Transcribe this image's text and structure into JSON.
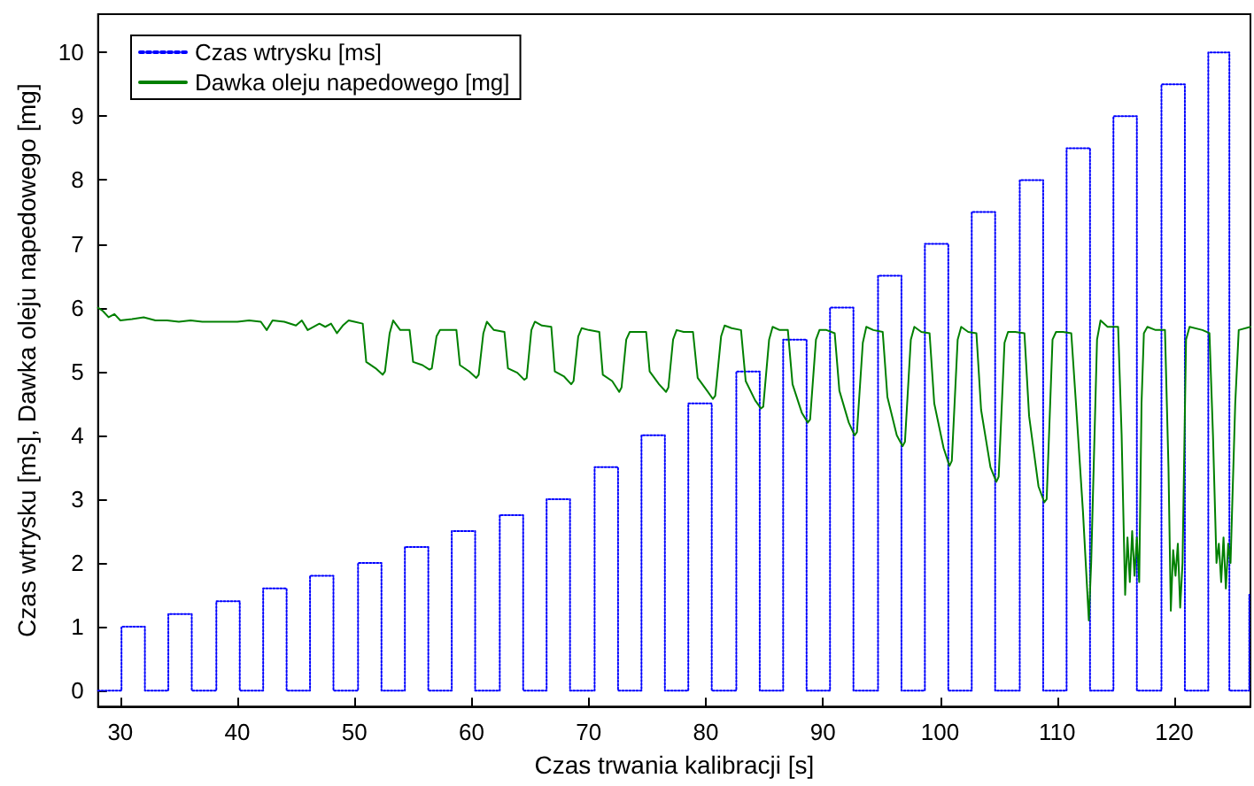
{
  "chart_data": {
    "type": "line",
    "xlabel": "Czas trwania kalibracji [s]",
    "ylabel": "Czas wtrysku [ms], Dawka oleju napedowego [mg]",
    "xlim": [
      28.1,
      126.5
    ],
    "xticks": [
      30,
      40,
      50,
      60,
      70,
      80,
      90,
      100,
      110,
      120
    ],
    "ylim": [
      -0.25,
      10.6
    ],
    "yticks": [
      0,
      1,
      2,
      3,
      4,
      5,
      6,
      7,
      8,
      9,
      10
    ],
    "grid": false,
    "legend": "top left",
    "marker": "none",
    "series": [
      {
        "name": "Czas wtrysku [ms]",
        "type": "step",
        "color": "#0000ff",
        "line_style": "dotted",
        "x": [
          28.1,
          30.1,
          32.1,
          34.1,
          36.1,
          38.2,
          40.2,
          42.2,
          44.2,
          46.2,
          48.2,
          50.3,
          52.3,
          54.3,
          56.3,
          58.3,
          60.3,
          62.4,
          64.4,
          66.4,
          68.4,
          70.5,
          72.5,
          74.5,
          76.5,
          78.5,
          80.5,
          82.6,
          84.6,
          86.6,
          88.6,
          90.6,
          92.6,
          94.7,
          96.7,
          98.7,
          100.7,
          102.7,
          104.7,
          106.8,
          108.8,
          110.8,
          112.8,
          114.8,
          116.8,
          118.9,
          120.9,
          122.9,
          124.7,
          126.4,
          126.5
        ],
        "values": [
          0,
          1,
          0,
          1.2,
          0,
          1.4,
          0,
          1.6,
          0,
          1.8,
          0,
          2,
          0,
          2.25,
          0,
          2.5,
          0,
          2.75,
          0,
          3,
          0,
          3.5,
          0,
          4,
          0,
          4.5,
          0,
          5,
          0,
          5.5,
          0,
          6,
          0,
          6.5,
          0,
          7,
          0,
          7.5,
          0,
          8,
          0,
          8.5,
          0,
          9,
          0,
          9.5,
          0,
          10,
          0,
          1.5,
          1.5
        ]
      },
      {
        "name": "Dawka oleju napedowego [mg]",
        "type": "line",
        "color": "#008000",
        "line_style": "solid",
        "x": [
          28.1,
          28.5,
          29,
          29.5,
          30,
          31,
          32,
          33,
          34,
          35,
          36,
          37,
          38,
          39,
          40,
          41,
          42,
          42.5,
          43,
          44,
          45,
          45.5,
          46,
          47,
          47.5,
          48,
          48.5,
          49,
          49.5,
          50,
          50.7,
          51.0,
          51.8,
          52.4,
          52.6,
          53.0,
          53.3,
          53.9,
          54.7,
          55.0,
          55.8,
          56.4,
          56.6,
          57.0,
          57.3,
          57.9,
          58.7,
          59.0,
          59.8,
          60.4,
          60.6,
          61.0,
          61.3,
          61.9,
          62.8,
          63.1,
          63.9,
          64.5,
          64.7,
          65.1,
          65.4,
          66.0,
          66.8,
          67.1,
          67.9,
          68.5,
          68.7,
          69.1,
          69.4,
          70.0,
          70.9,
          71.2,
          72.0,
          72.6,
          72.8,
          73.2,
          73.5,
          74.1,
          74.9,
          75.2,
          76.0,
          76.6,
          76.8,
          77.2,
          77.5,
          78.1,
          78.9,
          79.3,
          80.1,
          80.6,
          80.8,
          81.3,
          81.6,
          82.2,
          83.0,
          83.4,
          84.2,
          84.7,
          84.9,
          85.4,
          85.7,
          86.3,
          87.0,
          87.4,
          88.2,
          88.7,
          88.9,
          89.4,
          89.7,
          90.3,
          91.0,
          91.4,
          92.2,
          92.7,
          92.9,
          93.4,
          93.7,
          94.3,
          95.1,
          95.5,
          96.3,
          96.8,
          97.0,
          97.5,
          97.8,
          98.4,
          99.1,
          99.5,
          100.3,
          100.8,
          101.0,
          101.5,
          101.8,
          102.4,
          103.1,
          103.5,
          104.3,
          104.8,
          105.0,
          105.5,
          105.8,
          106.4,
          107.2,
          107.6,
          108.4,
          108.9,
          109.1,
          109.6,
          109.9,
          110.5,
          111.2,
          111.6,
          112.2,
          112.7,
          112.9,
          113.4,
          113.7,
          114.3,
          115.2,
          115.5,
          115.8,
          116.0,
          116.2,
          116.4,
          116.6,
          116.8,
          117.0,
          117.2,
          117.4,
          117.7,
          118.4,
          119.2,
          119.5,
          119.7,
          119.9,
          120.1,
          120.3,
          120.5,
          120.7,
          121.0,
          121.3,
          122.4,
          123.0,
          123.3,
          123.6,
          123.8,
          124.0,
          124.2,
          124.4,
          124.6,
          124.8,
          125.2,
          125.5,
          126.5
        ],
        "values": [
          6.0,
          5.95,
          5.85,
          5.9,
          5.8,
          5.82,
          5.85,
          5.8,
          5.8,
          5.78,
          5.8,
          5.78,
          5.78,
          5.78,
          5.78,
          5.8,
          5.78,
          5.65,
          5.8,
          5.78,
          5.72,
          5.8,
          5.65,
          5.75,
          5.7,
          5.75,
          5.6,
          5.72,
          5.8,
          5.78,
          5.75,
          5.15,
          5.05,
          4.95,
          5.0,
          5.6,
          5.8,
          5.65,
          5.65,
          5.15,
          5.1,
          5.03,
          5.05,
          5.55,
          5.65,
          5.65,
          5.65,
          5.1,
          5.0,
          4.9,
          4.95,
          5.6,
          5.78,
          5.65,
          5.62,
          5.05,
          4.98,
          4.87,
          4.9,
          5.65,
          5.78,
          5.72,
          5.7,
          5.0,
          4.92,
          4.8,
          4.85,
          5.55,
          5.68,
          5.65,
          5.62,
          4.95,
          4.85,
          4.68,
          4.75,
          5.5,
          5.62,
          5.62,
          5.62,
          5.0,
          4.8,
          4.68,
          4.75,
          5.5,
          5.65,
          5.62,
          5.62,
          4.9,
          4.7,
          4.57,
          4.62,
          5.55,
          5.72,
          5.68,
          5.65,
          4.85,
          4.55,
          4.42,
          4.45,
          5.5,
          5.7,
          5.65,
          5.65,
          4.8,
          4.35,
          4.2,
          4.25,
          5.5,
          5.65,
          5.65,
          5.6,
          4.7,
          4.2,
          4.0,
          4.05,
          5.45,
          5.7,
          5.65,
          5.62,
          4.6,
          4.0,
          3.83,
          3.9,
          5.5,
          5.7,
          5.62,
          5.6,
          4.5,
          3.8,
          3.52,
          3.6,
          5.5,
          5.7,
          5.62,
          5.6,
          4.4,
          3.5,
          3.27,
          3.35,
          5.45,
          5.62,
          5.62,
          5.6,
          4.3,
          3.2,
          2.95,
          3.0,
          5.5,
          5.62,
          5.62,
          5.6,
          4.5,
          2.8,
          1.1,
          2.0,
          5.5,
          5.8,
          5.7,
          5.7,
          4.0,
          1.5,
          2.4,
          1.7,
          2.5,
          1.8,
          2.4,
          1.7,
          4.5,
          5.6,
          5.7,
          5.65,
          5.65,
          3.5,
          1.25,
          2.2,
          1.8,
          2.3,
          1.3,
          2.0,
          5.5,
          5.7,
          5.65,
          5.6,
          4.0,
          2.0,
          2.3,
          1.7,
          2.4,
          1.6,
          2.3,
          2.0,
          4.5,
          5.65,
          5.7
        ]
      }
    ]
  }
}
